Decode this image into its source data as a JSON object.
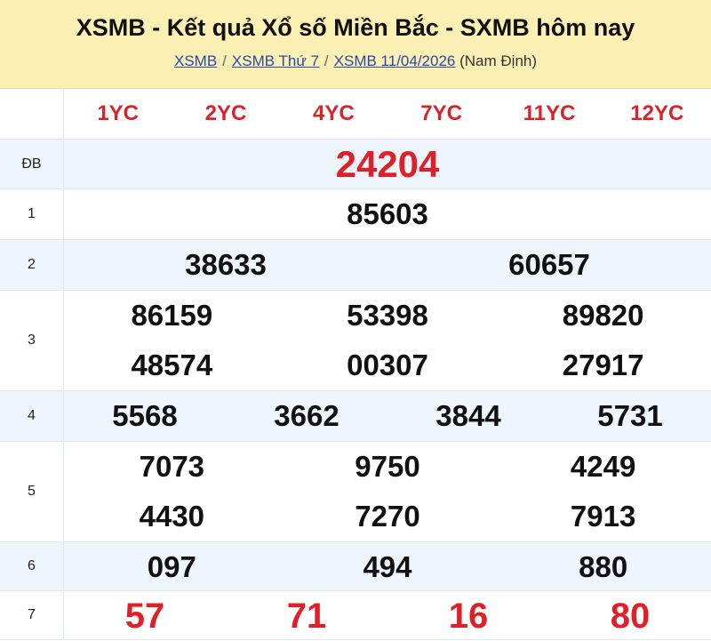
{
  "header": {
    "title": "XSMB - Kết quả Xổ số Miền Bắc - SXMB hôm nay",
    "breadcrumb": [
      {
        "label": "XSMB"
      },
      {
        "label": "XSMB Thứ 7"
      },
      {
        "label": "XSMB 11/04/2026"
      }
    ],
    "location": "(Nam Định)"
  },
  "codes": [
    "1YC",
    "2YC",
    "4YC",
    "7YC",
    "11YC",
    "12YC"
  ],
  "prizes": [
    {
      "label": "ĐB",
      "numbers": [
        "24204"
      ]
    },
    {
      "label": "1",
      "numbers": [
        "85603"
      ]
    },
    {
      "label": "2",
      "numbers": [
        "38633",
        "60657"
      ]
    },
    {
      "label": "3",
      "numbers": [
        "86159",
        "53398",
        "89820",
        "48574",
        "00307",
        "27917"
      ]
    },
    {
      "label": "4",
      "numbers": [
        "5568",
        "3662",
        "3844",
        "5731"
      ]
    },
    {
      "label": "5",
      "numbers": [
        "7073",
        "9750",
        "4249",
        "4430",
        "7270",
        "7913"
      ]
    },
    {
      "label": "6",
      "numbers": [
        "097",
        "494",
        "880"
      ]
    },
    {
      "label": "7",
      "numbers": [
        "57",
        "71",
        "16",
        "80"
      ]
    }
  ],
  "colors": {
    "header_bg": "#fcefb4",
    "accent_red": "#e02028",
    "alt_row": "#eef5fc",
    "link": "#2a4aa8"
  }
}
